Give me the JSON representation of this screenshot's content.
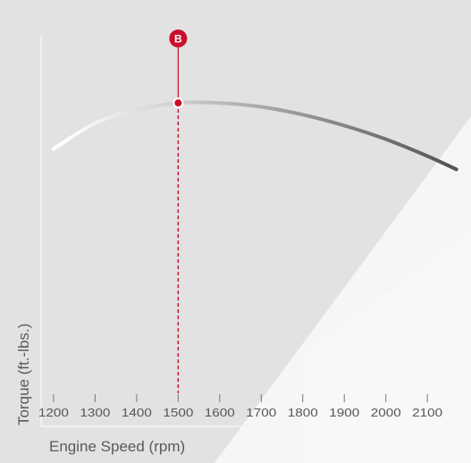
{
  "colors": {
    "background": "#e2e2e2",
    "accent": "#c8102e",
    "curve_start": "#ffffff",
    "curve_end": "#555555"
  },
  "chart_data": {
    "type": "line",
    "title": "",
    "xlabel": "Engine Speed (rpm)",
    "ylabel": "Torque (ft.-lbs.)",
    "xlim": [
      1170,
      2190
    ],
    "ylim": [
      0,
      1
    ],
    "x_ticks": [
      1200,
      1300,
      1400,
      1500,
      1600,
      1700,
      1800,
      1900,
      2000,
      2100
    ],
    "y_ticks": [],
    "grid": false,
    "legend": "none",
    "series": [
      {
        "name": "",
        "x": [
          1200,
          1300,
          1400,
          1500,
          1600,
          1700,
          1800,
          1900,
          2000,
          2100,
          2170
        ],
        "y": [
          0.71,
          0.776,
          0.81,
          0.828,
          0.828,
          0.818,
          0.798,
          0.77,
          0.735,
          0.692,
          0.658
        ]
      }
    ],
    "annotations": [
      {
        "label": "B",
        "x": 1500,
        "y": 0.828,
        "style": "red dashed drop line with letter marker"
      }
    ]
  }
}
